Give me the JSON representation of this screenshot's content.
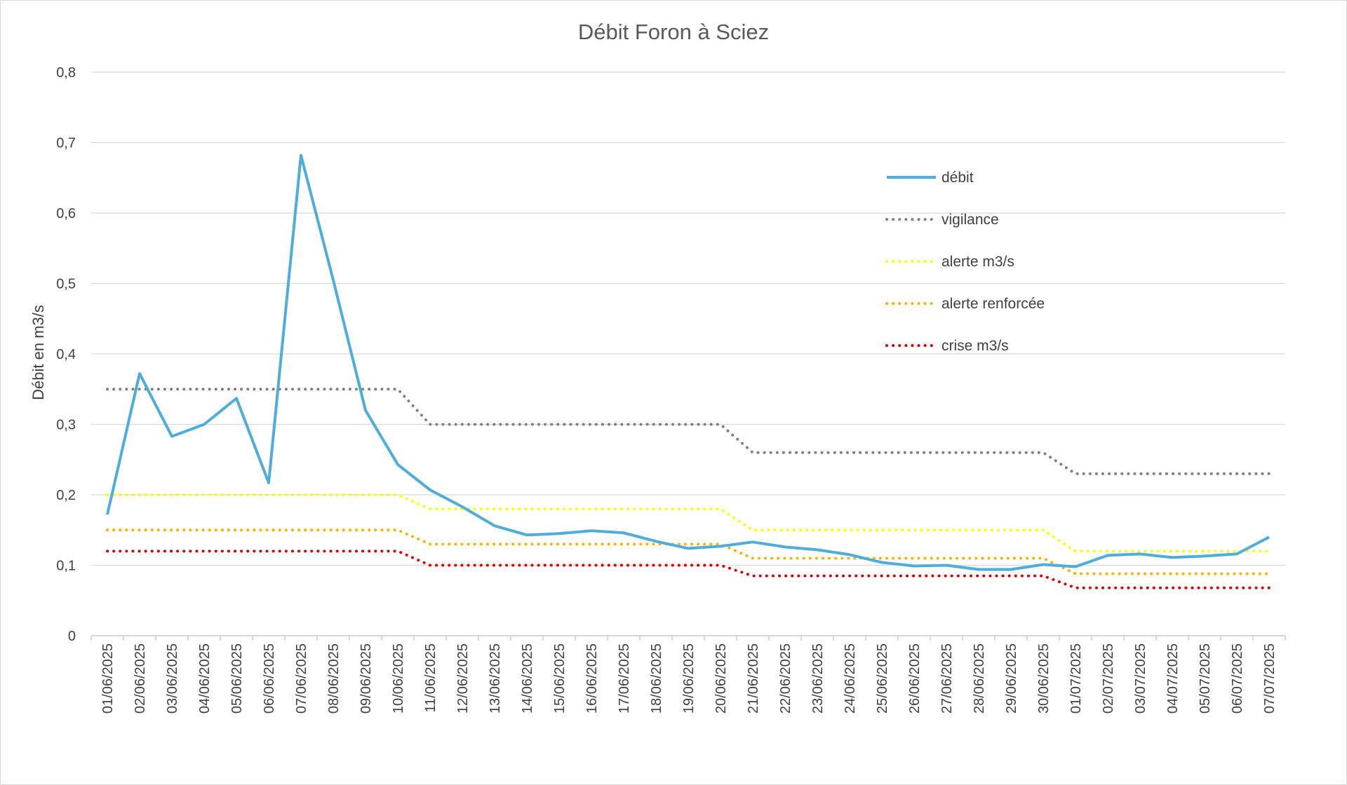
{
  "chart_data": {
    "type": "line",
    "title": "Débit Foron à Sciez",
    "xlabel": "",
    "ylabel": "Débit en m3/s",
    "ylim": [
      0,
      0.8
    ],
    "y_ticks": [
      "0",
      "0,1",
      "0,2",
      "0,3",
      "0,4",
      "0,5",
      "0,6",
      "0,7",
      "0,8"
    ],
    "grid": true,
    "legend_position": "right",
    "categories": [
      "01/06/2025",
      "02/06/2025",
      "03/06/2025",
      "04/06/2025",
      "05/06/2025",
      "06/06/2025",
      "07/06/2025",
      "08/06/2025",
      "09/06/2025",
      "10/06/2025",
      "11/06/2025",
      "12/06/2025",
      "13/06/2025",
      "14/06/2025",
      "15/06/2025",
      "16/06/2025",
      "17/06/2025",
      "18/06/2025",
      "19/06/2025",
      "20/06/2025",
      "21/06/2025",
      "22/06/2025",
      "23/06/2025",
      "24/06/2025",
      "25/06/2025",
      "26/06/2025",
      "27/06/2025",
      "28/06/2025",
      "29/06/2025",
      "30/06/2025",
      "01/07/2025",
      "02/07/2025",
      "03/07/2025",
      "04/07/2025",
      "05/07/2025",
      "06/07/2025",
      "07/07/2025"
    ],
    "series": [
      {
        "name": "débit",
        "color": "#4EADDC",
        "style": "solid",
        "values": [
          0.172,
          0.372,
          0.283,
          0.3,
          0.337,
          0.217,
          0.682,
          0.505,
          0.32,
          0.243,
          0.207,
          0.183,
          0.156,
          0.143,
          0.145,
          0.149,
          0.146,
          0.134,
          0.124,
          0.127,
          0.133,
          0.126,
          0.122,
          0.115,
          0.104,
          0.099,
          0.1,
          0.094,
          0.094,
          0.101,
          0.098,
          0.114,
          0.116,
          0.111,
          0.113,
          0.116,
          0.14
        ]
      },
      {
        "name": "vigilance",
        "color": "#808080",
        "style": "dotted",
        "values": [
          0.35,
          0.35,
          0.35,
          0.35,
          0.35,
          0.35,
          0.35,
          0.35,
          0.35,
          0.35,
          0.3,
          0.3,
          0.3,
          0.3,
          0.3,
          0.3,
          0.3,
          0.3,
          0.3,
          0.3,
          0.26,
          0.26,
          0.26,
          0.26,
          0.26,
          0.26,
          0.26,
          0.26,
          0.26,
          0.26,
          0.23,
          0.23,
          0.23,
          0.23,
          0.23,
          0.23,
          0.23
        ]
      },
      {
        "name": "alerte m3/s",
        "color": "#FFFF00",
        "style": "dotted",
        "values": [
          0.2,
          0.2,
          0.2,
          0.2,
          0.2,
          0.2,
          0.2,
          0.2,
          0.2,
          0.2,
          0.18,
          0.18,
          0.18,
          0.18,
          0.18,
          0.18,
          0.18,
          0.18,
          0.18,
          0.18,
          0.15,
          0.15,
          0.15,
          0.15,
          0.15,
          0.15,
          0.15,
          0.15,
          0.15,
          0.15,
          0.12,
          0.12,
          0.12,
          0.12,
          0.12,
          0.12,
          0.12
        ]
      },
      {
        "name": "alerte renforcée",
        "color": "#FFB000",
        "style": "dotted",
        "values": [
          0.15,
          0.15,
          0.15,
          0.15,
          0.15,
          0.15,
          0.15,
          0.15,
          0.15,
          0.15,
          0.13,
          0.13,
          0.13,
          0.13,
          0.13,
          0.13,
          0.13,
          0.13,
          0.13,
          0.13,
          0.11,
          0.11,
          0.11,
          0.11,
          0.11,
          0.11,
          0.11,
          0.11,
          0.11,
          0.11,
          0.088,
          0.088,
          0.088,
          0.088,
          0.088,
          0.088,
          0.088
        ]
      },
      {
        "name": "crise m3/s",
        "color": "#E00000",
        "style": "dotted",
        "values": [
          0.12,
          0.12,
          0.12,
          0.12,
          0.12,
          0.12,
          0.12,
          0.12,
          0.12,
          0.12,
          0.1,
          0.1,
          0.1,
          0.1,
          0.1,
          0.1,
          0.1,
          0.1,
          0.1,
          0.1,
          0.085,
          0.085,
          0.085,
          0.085,
          0.085,
          0.085,
          0.085,
          0.085,
          0.085,
          0.085,
          0.068,
          0.068,
          0.068,
          0.068,
          0.068,
          0.068,
          0.068
        ]
      }
    ]
  }
}
